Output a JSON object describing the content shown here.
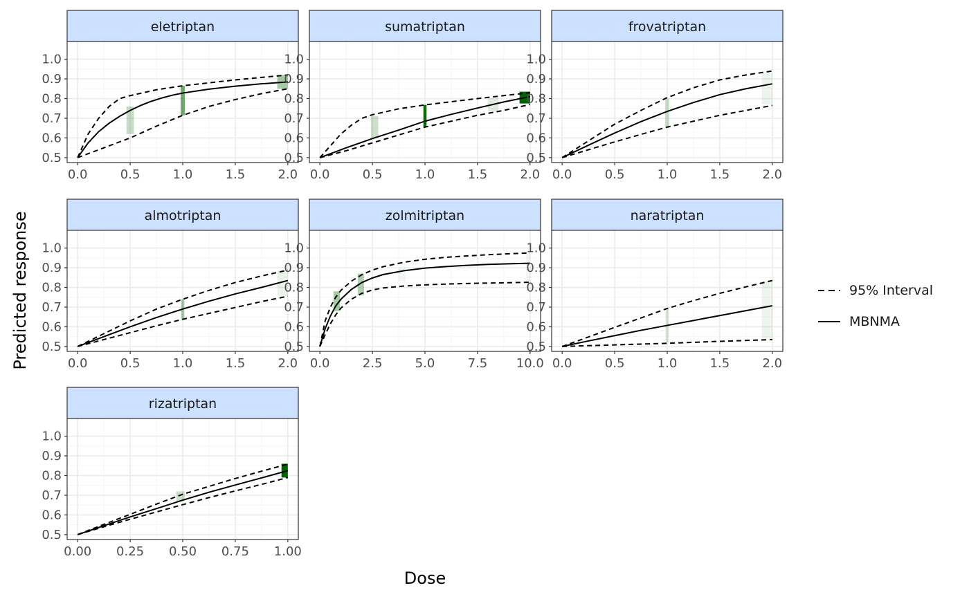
{
  "chart_data": {
    "type": "line",
    "xlabel": "Dose",
    "ylabel": "Predicted response",
    "legend": {
      "position": "right",
      "entries": [
        {
          "label": "95% Interval",
          "linetype": "dashed"
        },
        {
          "label": "MBNMA",
          "linetype": "solid"
        }
      ]
    },
    "grid": true,
    "colors": {
      "strip_fill": "#cce0ff",
      "band": "#006400",
      "line": "#000000",
      "grid_major": "#ebebeb",
      "grid_minor": "#f5f5f5",
      "panel_border": "#333333"
    },
    "yticks": [
      "0.5",
      "0.6",
      "0.7",
      "0.8",
      "0.9",
      "1.0"
    ],
    "ylim": [
      0.5,
      1.0
    ],
    "panels": [
      {
        "title": "eletriptan",
        "xlim": [
          0,
          2
        ],
        "xticks": [
          "0.0",
          "0.5",
          "1.0",
          "1.5",
          "2.0"
        ],
        "mean": [
          [
            0,
            0.5
          ],
          [
            0.1,
            0.575
          ],
          [
            0.2,
            0.632
          ],
          [
            0.3,
            0.675
          ],
          [
            0.4,
            0.71
          ],
          [
            0.5,
            0.74
          ],
          [
            0.6,
            0.765
          ],
          [
            0.7,
            0.786
          ],
          [
            0.8,
            0.803
          ],
          [
            0.9,
            0.817
          ],
          [
            1.0,
            0.828
          ],
          [
            1.25,
            0.848
          ],
          [
            1.5,
            0.863
          ],
          [
            1.75,
            0.875
          ],
          [
            2.0,
            0.885
          ]
        ],
        "lower": [
          [
            0,
            0.5
          ],
          [
            0.25,
            0.55
          ],
          [
            0.5,
            0.6
          ],
          [
            0.75,
            0.66
          ],
          [
            1.0,
            0.715
          ],
          [
            1.25,
            0.76
          ],
          [
            1.5,
            0.795
          ],
          [
            1.75,
            0.825
          ],
          [
            2.0,
            0.85
          ]
        ],
        "upper": [
          [
            0,
            0.5
          ],
          [
            0.1,
            0.62
          ],
          [
            0.2,
            0.7
          ],
          [
            0.3,
            0.76
          ],
          [
            0.4,
            0.8
          ],
          [
            0.5,
            0.815
          ],
          [
            0.75,
            0.845
          ],
          [
            1.0,
            0.865
          ],
          [
            1.5,
            0.895
          ],
          [
            2.0,
            0.92
          ]
        ],
        "bands": [
          {
            "x": 0.5,
            "lower": 0.62,
            "upper": 0.76,
            "alpha": 0.22,
            "width": 0.07
          },
          {
            "x": 1.0,
            "lower": 0.715,
            "upper": 0.865,
            "alpha": 0.55,
            "width": 0.04
          },
          {
            "x": 1.95,
            "lower": 0.85,
            "upper": 0.92,
            "alpha": 0.35,
            "width": 0.1
          }
        ]
      },
      {
        "title": "sumatriptan",
        "xlim": [
          0,
          2
        ],
        "xticks": [
          "0.0",
          "0.5",
          "1.0",
          "1.5",
          "2.0"
        ],
        "mean": [
          [
            0,
            0.5
          ],
          [
            0.25,
            0.55
          ],
          [
            0.5,
            0.597
          ],
          [
            0.75,
            0.64
          ],
          [
            1.0,
            0.685
          ],
          [
            1.25,
            0.72
          ],
          [
            1.5,
            0.752
          ],
          [
            1.75,
            0.783
          ],
          [
            2.0,
            0.81
          ]
        ],
        "lower": [
          [
            0,
            0.5
          ],
          [
            0.25,
            0.535
          ],
          [
            0.5,
            0.575
          ],
          [
            0.75,
            0.615
          ],
          [
            1.0,
            0.655
          ],
          [
            1.25,
            0.685
          ],
          [
            1.5,
            0.715
          ],
          [
            1.75,
            0.74
          ],
          [
            2.0,
            0.77
          ]
        ],
        "upper": [
          [
            0,
            0.5
          ],
          [
            0.1,
            0.56
          ],
          [
            0.2,
            0.62
          ],
          [
            0.3,
            0.665
          ],
          [
            0.4,
            0.7
          ],
          [
            0.5,
            0.718
          ],
          [
            0.75,
            0.748
          ],
          [
            1.0,
            0.768
          ],
          [
            1.5,
            0.8
          ],
          [
            2.0,
            0.83
          ]
        ],
        "bands": [
          {
            "x": 0.52,
            "lower": 0.6,
            "upper": 0.71,
            "alpha": 0.2,
            "width": 0.07
          },
          {
            "x": 1.0,
            "lower": 0.655,
            "upper": 0.768,
            "alpha": 0.95,
            "width": 0.03
          },
          {
            "x": 1.65,
            "lower": 0.735,
            "upper": 0.8,
            "alpha": 0.12,
            "width": 0.1
          },
          {
            "x": 1.95,
            "lower": 0.775,
            "upper": 0.835,
            "alpha": 1.0,
            "width": 0.1
          }
        ]
      },
      {
        "title": "frovatriptan",
        "xlim": [
          0,
          2
        ],
        "xticks": [
          "0.0",
          "0.5",
          "1.0",
          "1.5",
          "2.0"
        ],
        "mean": [
          [
            0,
            0.5
          ],
          [
            0.25,
            0.563
          ],
          [
            0.5,
            0.625
          ],
          [
            0.75,
            0.683
          ],
          [
            1.0,
            0.735
          ],
          [
            1.25,
            0.78
          ],
          [
            1.5,
            0.82
          ],
          [
            1.75,
            0.85
          ],
          [
            2.0,
            0.875
          ]
        ],
        "lower": [
          [
            0,
            0.5
          ],
          [
            0.25,
            0.54
          ],
          [
            0.5,
            0.58
          ],
          [
            0.75,
            0.618
          ],
          [
            1.0,
            0.655
          ],
          [
            1.25,
            0.685
          ],
          [
            1.5,
            0.715
          ],
          [
            1.75,
            0.74
          ],
          [
            2.0,
            0.765
          ]
        ],
        "upper": [
          [
            0,
            0.5
          ],
          [
            0.25,
            0.585
          ],
          [
            0.5,
            0.67
          ],
          [
            0.75,
            0.74
          ],
          [
            1.0,
            0.805
          ],
          [
            1.25,
            0.855
          ],
          [
            1.5,
            0.895
          ],
          [
            1.75,
            0.92
          ],
          [
            2.0,
            0.94
          ]
        ],
        "bands": [
          {
            "x": 1.0,
            "lower": 0.65,
            "upper": 0.8,
            "alpha": 0.2,
            "width": 0.04
          },
          {
            "x": 1.95,
            "lower": 0.77,
            "upper": 0.93,
            "alpha": 0.07,
            "width": 0.1
          }
        ]
      },
      {
        "title": "almotriptan",
        "xlim": [
          0,
          2
        ],
        "xticks": [
          "0.0",
          "0.5",
          "1.0",
          "1.5",
          "2.0"
        ],
        "mean": [
          [
            0,
            0.5
          ],
          [
            0.25,
            0.55
          ],
          [
            0.5,
            0.6
          ],
          [
            0.75,
            0.647
          ],
          [
            1.0,
            0.69
          ],
          [
            1.25,
            0.73
          ],
          [
            1.5,
            0.767
          ],
          [
            1.75,
            0.8
          ],
          [
            2.0,
            0.835
          ]
        ],
        "lower": [
          [
            0,
            0.5
          ],
          [
            0.25,
            0.535
          ],
          [
            0.5,
            0.57
          ],
          [
            0.75,
            0.605
          ],
          [
            1.0,
            0.638
          ],
          [
            1.25,
            0.668
          ],
          [
            1.5,
            0.698
          ],
          [
            1.75,
            0.728
          ],
          [
            2.0,
            0.755
          ]
        ],
        "upper": [
          [
            0,
            0.5
          ],
          [
            0.25,
            0.565
          ],
          [
            0.5,
            0.63
          ],
          [
            0.75,
            0.69
          ],
          [
            1.0,
            0.74
          ],
          [
            1.25,
            0.785
          ],
          [
            1.5,
            0.825
          ],
          [
            1.75,
            0.858
          ],
          [
            2.0,
            0.888
          ]
        ],
        "bands": [
          {
            "x": 1.0,
            "lower": 0.638,
            "upper": 0.74,
            "alpha": 0.35,
            "width": 0.03
          },
          {
            "x": 1.95,
            "lower": 0.755,
            "upper": 0.888,
            "alpha": 0.08,
            "width": 0.1
          }
        ]
      },
      {
        "title": "zolmitriptan",
        "xlim": [
          0,
          10
        ],
        "xticks": [
          "0.0",
          "2.5",
          "5.0",
          "7.5",
          "10.0"
        ],
        "mean": [
          [
            0,
            0.5
          ],
          [
            0.25,
            0.59
          ],
          [
            0.5,
            0.655
          ],
          [
            0.75,
            0.705
          ],
          [
            1.0,
            0.74
          ],
          [
            1.5,
            0.79
          ],
          [
            2.0,
            0.825
          ],
          [
            2.5,
            0.848
          ],
          [
            3.0,
            0.865
          ],
          [
            4.0,
            0.885
          ],
          [
            5.0,
            0.898
          ],
          [
            6.0,
            0.906
          ],
          [
            7.0,
            0.912
          ],
          [
            8.0,
            0.917
          ],
          [
            9.0,
            0.92
          ],
          [
            10.0,
            0.923
          ]
        ],
        "lower": [
          [
            0,
            0.5
          ],
          [
            0.25,
            0.56
          ],
          [
            0.5,
            0.615
          ],
          [
            0.75,
            0.66
          ],
          [
            1.0,
            0.695
          ],
          [
            1.5,
            0.74
          ],
          [
            2.0,
            0.77
          ],
          [
            2.5,
            0.787
          ],
          [
            3.0,
            0.797
          ],
          [
            4.0,
            0.807
          ],
          [
            5.0,
            0.813
          ],
          [
            6.0,
            0.817
          ],
          [
            7.0,
            0.82
          ],
          [
            8.0,
            0.822
          ],
          [
            9.0,
            0.824
          ],
          [
            10.0,
            0.826
          ]
        ],
        "upper": [
          [
            0,
            0.5
          ],
          [
            0.25,
            0.63
          ],
          [
            0.5,
            0.7
          ],
          [
            0.75,
            0.75
          ],
          [
            1.0,
            0.785
          ],
          [
            1.5,
            0.832
          ],
          [
            2.0,
            0.865
          ],
          [
            2.5,
            0.888
          ],
          [
            3.0,
            0.905
          ],
          [
            4.0,
            0.928
          ],
          [
            5.0,
            0.943
          ],
          [
            6.0,
            0.953
          ],
          [
            7.0,
            0.96
          ],
          [
            8.0,
            0.966
          ],
          [
            9.0,
            0.971
          ],
          [
            10.0,
            0.975
          ]
        ],
        "bands": [
          {
            "x": 0.8,
            "lower": 0.68,
            "upper": 0.78,
            "alpha": 0.35,
            "width": 0.3
          },
          {
            "x": 1.95,
            "lower": 0.76,
            "upper": 0.87,
            "alpha": 0.3,
            "width": 0.3
          },
          {
            "x": 3.9,
            "lower": 0.83,
            "upper": 0.9,
            "alpha": 0.05,
            "width": 0.35
          },
          {
            "x": 9.9,
            "lower": 0.83,
            "upper": 0.97,
            "alpha": 0.05,
            "width": 0.2
          }
        ]
      },
      {
        "title": "naratriptan",
        "xlim": [
          0,
          2
        ],
        "xticks": [
          "0.0",
          "0.5",
          "1.0",
          "1.5",
          "2.0"
        ],
        "mean": [
          [
            0,
            0.5
          ],
          [
            0.25,
            0.528
          ],
          [
            0.5,
            0.555
          ],
          [
            0.75,
            0.582
          ],
          [
            1.0,
            0.607
          ],
          [
            1.25,
            0.632
          ],
          [
            1.5,
            0.657
          ],
          [
            1.75,
            0.682
          ],
          [
            2.0,
            0.707
          ]
        ],
        "lower": [
          [
            0,
            0.5
          ],
          [
            0.5,
            0.508
          ],
          [
            1.0,
            0.516
          ],
          [
            1.5,
            0.526
          ],
          [
            2.0,
            0.535
          ]
        ],
        "upper": [
          [
            0,
            0.5
          ],
          [
            0.25,
            0.548
          ],
          [
            0.5,
            0.597
          ],
          [
            0.75,
            0.645
          ],
          [
            1.0,
            0.693
          ],
          [
            1.25,
            0.733
          ],
          [
            1.5,
            0.77
          ],
          [
            1.75,
            0.803
          ],
          [
            2.0,
            0.835
          ]
        ],
        "bands": [
          {
            "x": 1.0,
            "lower": 0.52,
            "upper": 0.69,
            "alpha": 0.15,
            "width": 0.03
          },
          {
            "x": 1.95,
            "lower": 0.54,
            "upper": 0.83,
            "alpha": 0.07,
            "width": 0.1
          }
        ]
      },
      {
        "title": "rizatriptan",
        "xlim": [
          0,
          1
        ],
        "xticks": [
          "0.00",
          "0.25",
          "0.50",
          "0.75",
          "1.00"
        ],
        "mean": [
          [
            0,
            0.5
          ],
          [
            0.125,
            0.545
          ],
          [
            0.25,
            0.59
          ],
          [
            0.375,
            0.632
          ],
          [
            0.5,
            0.675
          ],
          [
            0.625,
            0.715
          ],
          [
            0.75,
            0.752
          ],
          [
            0.875,
            0.788
          ],
          [
            1.0,
            0.825
          ]
        ],
        "lower": [
          [
            0,
            0.5
          ],
          [
            0.125,
            0.54
          ],
          [
            0.25,
            0.578
          ],
          [
            0.375,
            0.615
          ],
          [
            0.5,
            0.652
          ],
          [
            0.625,
            0.688
          ],
          [
            0.75,
            0.722
          ],
          [
            0.875,
            0.755
          ],
          [
            1.0,
            0.79
          ]
        ],
        "upper": [
          [
            0,
            0.5
          ],
          [
            0.125,
            0.552
          ],
          [
            0.25,
            0.603
          ],
          [
            0.375,
            0.655
          ],
          [
            0.5,
            0.705
          ],
          [
            0.625,
            0.745
          ],
          [
            0.75,
            0.785
          ],
          [
            0.875,
            0.822
          ],
          [
            1.0,
            0.858
          ]
        ],
        "bands": [
          {
            "x": 0.49,
            "lower": 0.67,
            "upper": 0.72,
            "alpha": 0.2,
            "width": 0.04
          },
          {
            "x": 0.985,
            "lower": 0.79,
            "upper": 0.86,
            "alpha": 1.0,
            "width": 0.03
          }
        ]
      }
    ]
  }
}
